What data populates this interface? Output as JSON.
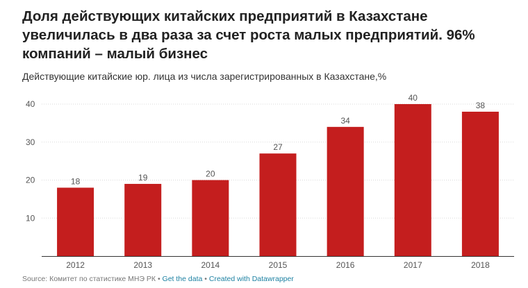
{
  "title": "Доля действующих китайских предприятий в Казахстане увеличилась в два раза за счет роста малых предприятий. 96% компаний – малый бизнес",
  "subtitle": "Действующие китайские юр. лица из числа зарегистрированных в Казахстане,%",
  "footer": {
    "source": "Source: Комитет по статистике МНЭ РК",
    "sep1": " • ",
    "get_data": "Get the data",
    "sep2": " • ",
    "created_with": "Created with Datawrapper"
  },
  "colors": {
    "bar": "#c41e1e",
    "grid": "#d9d9d9",
    "axis": "#333333"
  },
  "chart_data": {
    "type": "bar",
    "categories": [
      "2012",
      "2013",
      "2014",
      "2015",
      "2016",
      "2017",
      "2018"
    ],
    "values": [
      18,
      19,
      20,
      27,
      34,
      40,
      38
    ],
    "yticks": [
      10,
      20,
      30,
      40
    ],
    "ylim": [
      0,
      43
    ],
    "grid": true,
    "data_labels": true,
    "xlabel": "",
    "ylabel": ""
  }
}
